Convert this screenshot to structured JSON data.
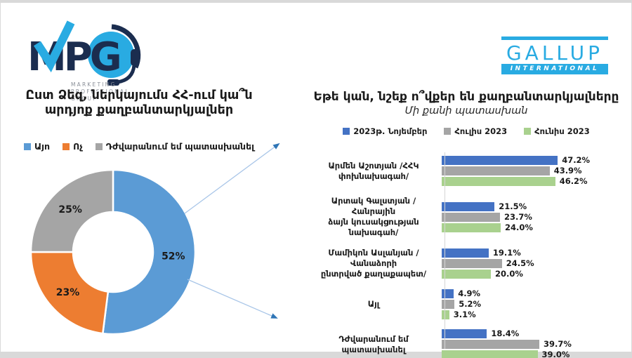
{
  "logos": {
    "mpg": {
      "text": "MPG",
      "sub_lines": [
        "MARKETING",
        "PROFESSIONAL",
        "GROUP"
      ],
      "navy": "#1b2d4f",
      "light_blue": "#29abe2"
    },
    "gallup": {
      "name": "GALLUP",
      "sub": "INTERNATIONAL",
      "color": "#29abe2"
    }
  },
  "left_chart": {
    "title_lines": [
      "Ըստ Ձեզ, ներկայումս ՀՀ-ում կա՞ն",
      "արդյոք քաղբանտարկյալներ"
    ]
  },
  "right_chart": {
    "title": "Եթե կան, նշեք ո՞վքեր են քաղբանտարկյալները",
    "subtitle": "Մի քանի պատասխան"
  },
  "chart_data": [
    {
      "type": "pie",
      "donut": true,
      "title": "Ըստ Ձեզ, ներկայումս ՀՀ-ում կա՞ն արդյոք քաղբանտարկյալներ",
      "labels": [
        "Այո",
        "Ոչ",
        "Դժվարանում եմ պատասխանել"
      ],
      "values": [
        52,
        23,
        25
      ],
      "value_labels": [
        "52%",
        "23%",
        "25%"
      ],
      "colors": [
        "#5b9bd5",
        "#ed7d31",
        "#a5a5a5"
      ],
      "legend_position": "top",
      "label_angles_deg": [
        93.6,
        228.6,
        315
      ]
    },
    {
      "type": "bar",
      "orientation": "horizontal",
      "title": "Եթե կան, նշեք ո՞վքեր են քաղբանտարկյալները",
      "subtitle": "Մի քանի պատասխան",
      "categories": [
        "Արմեն Աշոտյան /ՀՀԿ փոխնախագահ/",
        "Արտակ Գալստյան /Հանրային ձայն կուսակցության նախագահ/",
        "Մամիկոն Ասլանյան / Վանաձորի ընտրված քաղաքապետ/",
        "Այլ",
        "Դժվարանում եմ պատասխանել"
      ],
      "category_lines": [
        [
          "Արմեն Աշոտյան /ՀՀԿ",
          "փոխնախագահ/"
        ],
        [
          "Արտակ Գալստյան /Հանրային",
          "ձայն կուսակցության նախագահ/"
        ],
        [
          "Մամիկոն Ասլանյան / Վանաձորի",
          "ընտրված քաղաքապետ/"
        ],
        [
          "Այլ"
        ],
        [
          "Դժվարանում եմ պատասխանել"
        ]
      ],
      "series": [
        {
          "name": "2023թ. Նոյեմբեր",
          "color": "#4472c4",
          "values": [
            47.2,
            21.5,
            19.1,
            4.9,
            18.4
          ]
        },
        {
          "name": "Հուլիս 2023",
          "color": "#a5a5a5",
          "values": [
            43.9,
            23.7,
            24.5,
            5.2,
            39.7
          ]
        },
        {
          "name": "Հունիս 2023",
          "color": "#a9d18e",
          "values": [
            46.2,
            24.0,
            20.0,
            3.1,
            39.0
          ]
        }
      ],
      "value_suffix": "%",
      "xlim": [
        0,
        50
      ],
      "data_labels": true,
      "legend_position": "top",
      "grid": false
    }
  ]
}
